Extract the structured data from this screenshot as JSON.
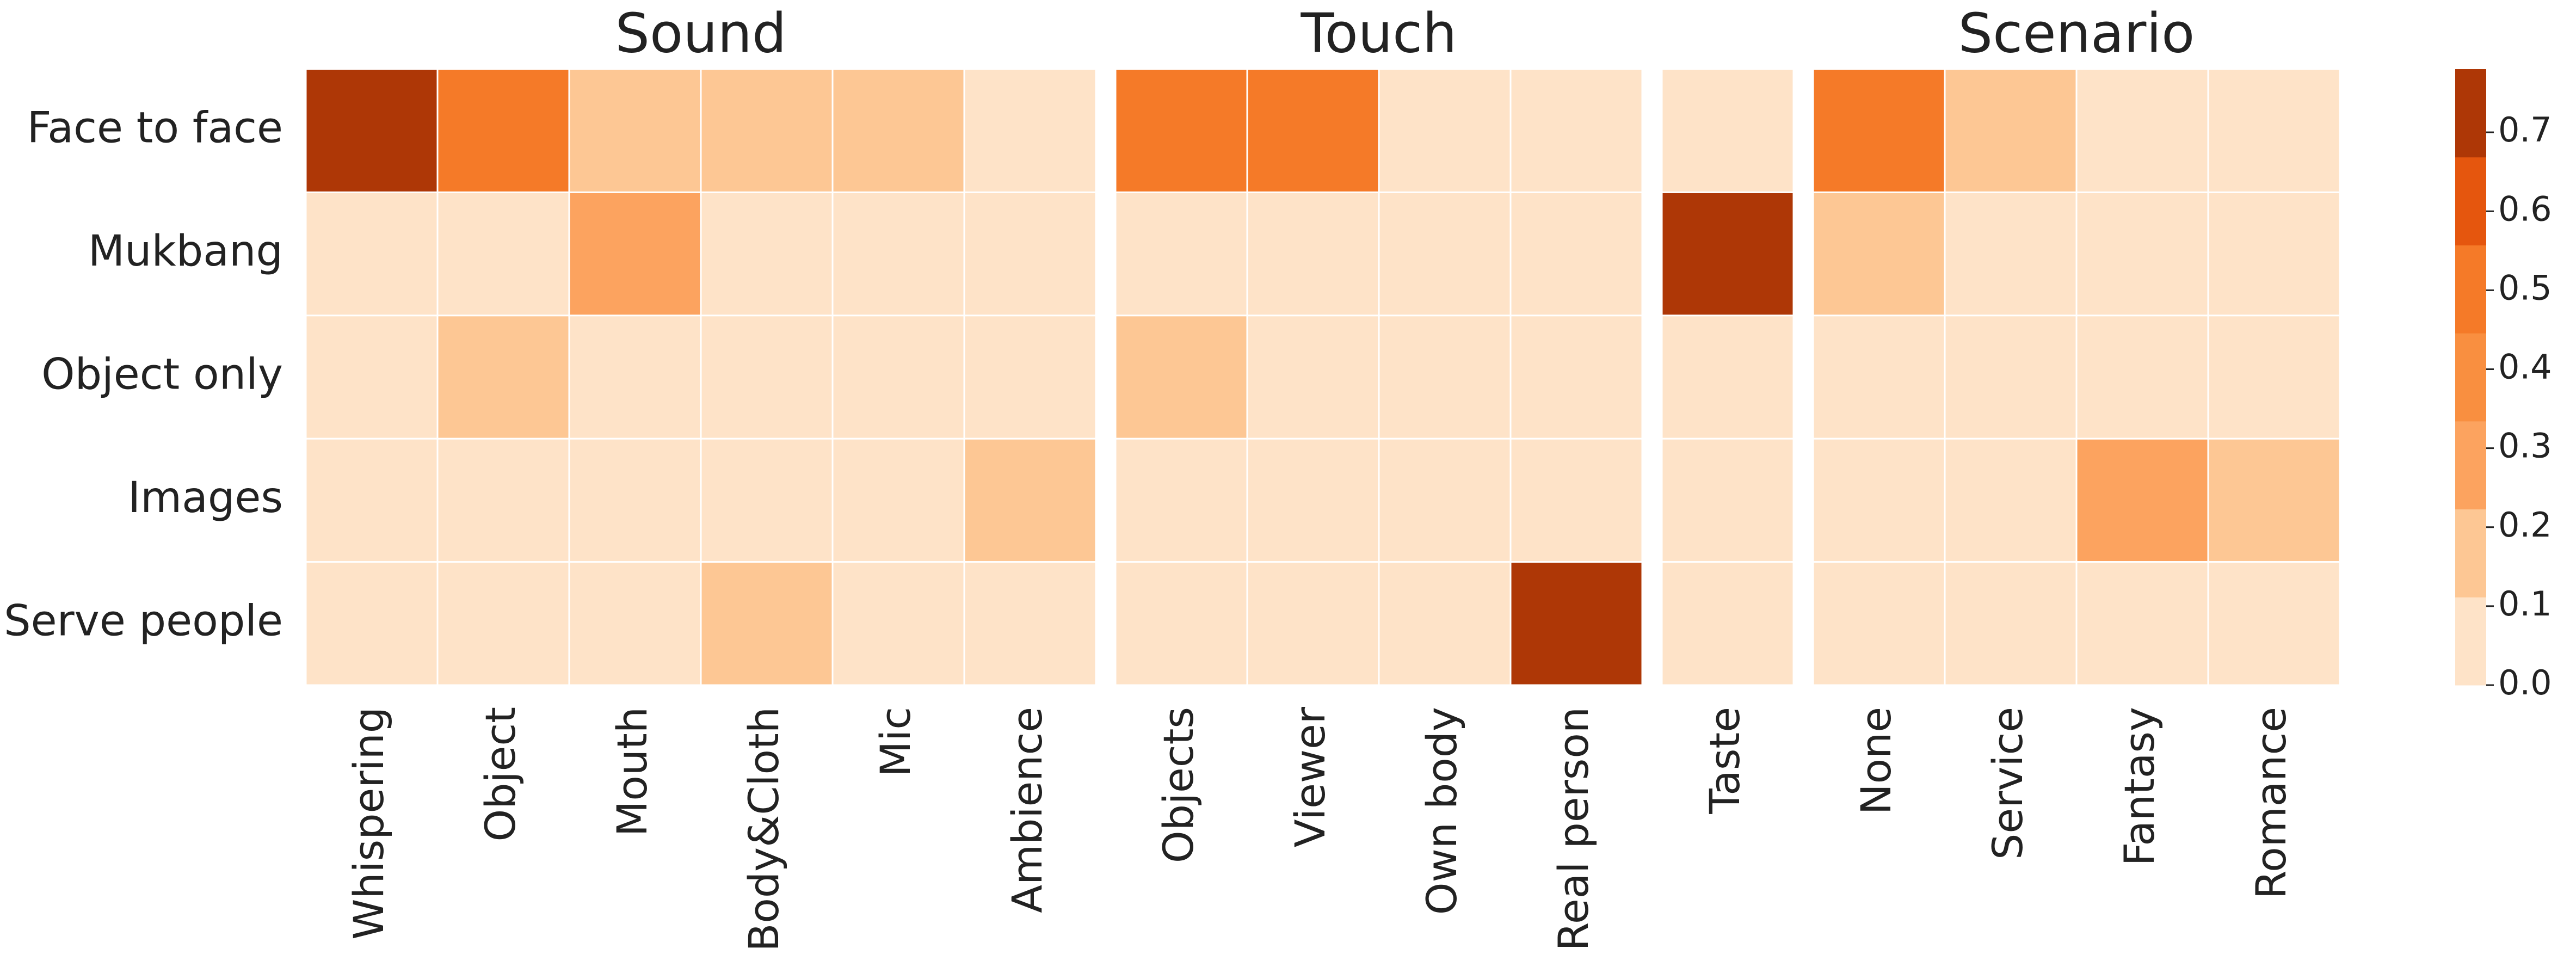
{
  "chart_data": {
    "type": "heatmap",
    "rows": [
      "Face to face",
      "Mukbang",
      "Object only",
      "Images",
      "Serve people"
    ],
    "panels": [
      {
        "title": "Sound",
        "categories": [
          "Whispering",
          "Object",
          "Mouth",
          "Body&Cloth",
          "Mic",
          "Ambience"
        ],
        "values": [
          [
            0.72,
            0.48,
            0.17,
            0.17,
            0.17,
            0.05
          ],
          [
            0.05,
            0.05,
            0.28,
            0.05,
            0.05,
            0.05
          ],
          [
            0.05,
            0.17,
            0.05,
            0.05,
            0.05,
            0.05
          ],
          [
            0.05,
            0.05,
            0.05,
            0.05,
            0.05,
            0.17
          ],
          [
            0.05,
            0.05,
            0.05,
            0.17,
            0.05,
            0.05
          ]
        ]
      },
      {
        "title": "Touch",
        "categories": [
          "Objects",
          "Viewer",
          "Own body",
          "Real person"
        ],
        "values": [
          [
            0.48,
            0.48,
            0.05,
            0.05
          ],
          [
            0.05,
            0.05,
            0.05,
            0.05
          ],
          [
            0.17,
            0.05,
            0.05,
            0.05
          ],
          [
            0.05,
            0.05,
            0.05,
            0.05
          ],
          [
            0.05,
            0.05,
            0.05,
            0.72
          ]
        ]
      },
      {
        "categories": [
          "Taste"
        ],
        "values": [
          [
            0.05
          ],
          [
            0.72
          ],
          [
            0.05
          ],
          [
            0.05
          ],
          [
            0.05
          ]
        ]
      },
      {
        "title": "Scenario",
        "categories": [
          "None",
          "Service",
          "Fantasy",
          "Romance"
        ],
        "values": [
          [
            0.48,
            0.17,
            0.05,
            0.05
          ],
          [
            0.17,
            0.05,
            0.05,
            0.05
          ],
          [
            0.05,
            0.05,
            0.05,
            0.05
          ],
          [
            0.05,
            0.05,
            0.28,
            0.17
          ],
          [
            0.05,
            0.05,
            0.05,
            0.05
          ]
        ]
      }
    ],
    "colors": [
      "#fee3c8",
      "#fdc794",
      "#fca35f",
      "#f98f40",
      "#f57a28",
      "#e5560e",
      "#ae3706"
    ],
    "vlim": [
      0,
      0.78
    ],
    "colorbar_ticks": [
      {
        "value": 0,
        "label": "0.0"
      },
      0.1,
      0.2,
      0.3,
      0.4,
      0.5,
      0.6,
      0.7
    ]
  }
}
